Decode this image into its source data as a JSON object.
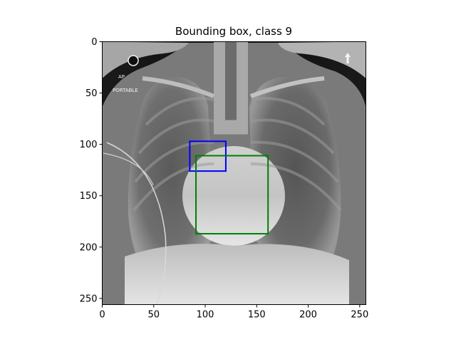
{
  "title": "Bounding box, class 9",
  "image": {
    "width": 256,
    "height": 256,
    "overlay_text": {
      "line1": "AP",
      "line2": "PORTABLE"
    }
  },
  "axes": {
    "x": {
      "lim": [
        0,
        256
      ],
      "ticks": [
        0,
        50,
        100,
        150,
        200,
        250
      ]
    },
    "y": {
      "lim": [
        256,
        0
      ],
      "ticks": [
        0,
        50,
        100,
        150,
        200,
        250
      ]
    }
  },
  "boxes": [
    {
      "color": "#0000ff",
      "x0": 85,
      "y0": 97,
      "x1": 120,
      "y1": 126
    },
    {
      "color": "#008000",
      "x0": 91,
      "y0": 111,
      "x1": 161,
      "y1": 187
    }
  ]
}
